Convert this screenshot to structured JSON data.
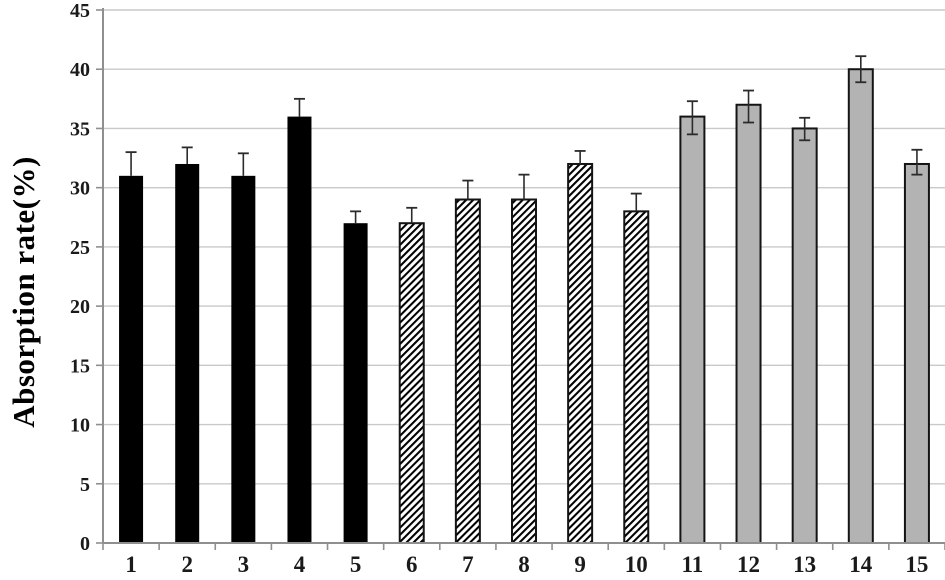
{
  "chart_data": {
    "type": "bar",
    "title": "",
    "xlabel": "",
    "ylabel": "Absorption rate(%)",
    "categories": [
      "1",
      "2",
      "3",
      "4",
      "5",
      "6",
      "7",
      "8",
      "9",
      "10",
      "11",
      "12",
      "13",
      "14",
      "15"
    ],
    "values": [
      31,
      32,
      31,
      36,
      27,
      27,
      29,
      29,
      32,
      28,
      36,
      37,
      35,
      40,
      32
    ],
    "errors_up": [
      2.0,
      1.4,
      1.9,
      1.5,
      1.0,
      1.3,
      1.6,
      2.1,
      1.1,
      1.5,
      1.3,
      1.2,
      0.9,
      1.1,
      1.2
    ],
    "errors_down": [
      0,
      0,
      0,
      0,
      0,
      0,
      0,
      0,
      0,
      0,
      1.5,
      1.5,
      1.0,
      1.1,
      0.9
    ],
    "groups": [
      {
        "name": "bars-1-5",
        "style": "solid-black",
        "from": 1,
        "to": 5
      },
      {
        "name": "bars-6-10",
        "style": "diagonal-hatch",
        "from": 6,
        "to": 10
      },
      {
        "name": "bars-11-15",
        "style": "solid-gray",
        "from": 11,
        "to": 15
      }
    ],
    "ylim": [
      0,
      45
    ],
    "yticks": [
      0,
      5,
      10,
      15,
      20,
      25,
      30,
      35,
      40,
      45
    ],
    "grid": "horizontal",
    "legend": "none",
    "colors": {
      "black_fill": "#000000",
      "gray_fill": "#b3b3b3",
      "hatch_line": "#000000",
      "bar_outline": "#141414",
      "gridline": "#c9c9c9",
      "axis": "#8f8f8f",
      "error_bar": "#2b2b2b",
      "background": "#ffffff",
      "text": "#1a1a1a"
    }
  }
}
